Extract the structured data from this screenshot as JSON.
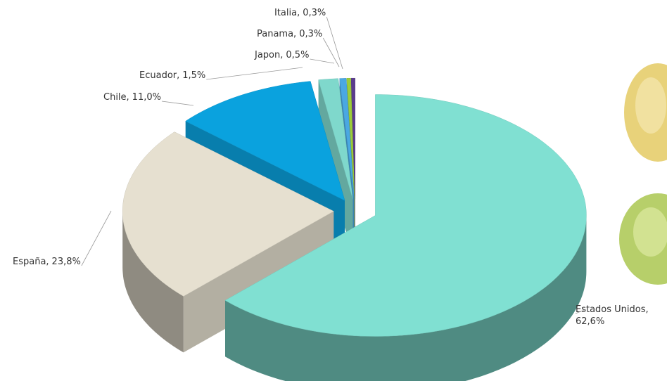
{
  "chart_data": {
    "type": "pie3d",
    "categories": [
      "Estados Unidos,",
      "España,",
      "Chile,",
      "Ecuador,",
      "Japon,",
      "Panama,",
      "Italia,"
    ],
    "values": [
      62.6,
      23.8,
      11.0,
      1.5,
      0.5,
      0.3,
      0.3
    ],
    "value_labels": [
      "62,6%",
      "23,8%",
      "11,0%",
      "1,5%",
      "0,5%",
      "0,3%",
      "0,3%"
    ],
    "colors": [
      "#80e0d2",
      "#e6e0d0",
      "#0aa2de",
      "#7fd8cc",
      "#4aa8e2",
      "#9ccc3a",
      "#5a3c8c"
    ]
  }
}
